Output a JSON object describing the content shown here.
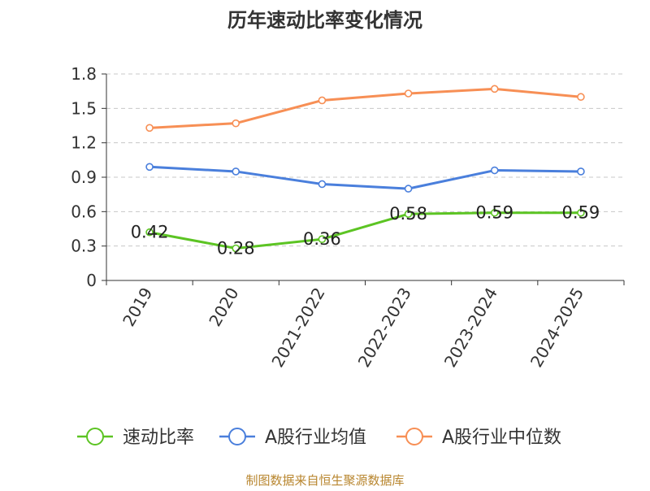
{
  "chart_data": {
    "type": "line",
    "title": "历年速动比率变化情况",
    "categories": [
      "2019",
      "2020",
      "2021-2022",
      "2022-2023",
      "2023-2024",
      "2024-2025"
    ],
    "y_ticks": [
      "0",
      "0.3",
      "0.6",
      "0.9",
      "1.2",
      "1.5",
      "1.8"
    ],
    "ylim": [
      0,
      1.8
    ],
    "grid": true,
    "legend_position": "bottom",
    "series": [
      {
        "name": "速动比率",
        "color": "#5cc423",
        "values": [
          0.42,
          0.28,
          0.36,
          0.58,
          0.59,
          0.59
        ],
        "labels": [
          "0.42",
          "0.28",
          "0.36",
          "0.58",
          "0.59",
          "0.59"
        ]
      },
      {
        "name": "A股行业均值",
        "color": "#4a7fdc",
        "values": [
          0.99,
          0.95,
          0.84,
          0.8,
          0.96,
          0.95
        ]
      },
      {
        "name": "A股行业中位数",
        "color": "#f78f55",
        "values": [
          1.33,
          1.37,
          1.57,
          1.63,
          1.67,
          1.6
        ]
      }
    ],
    "source": "制图数据来自恒生聚源数据库"
  }
}
